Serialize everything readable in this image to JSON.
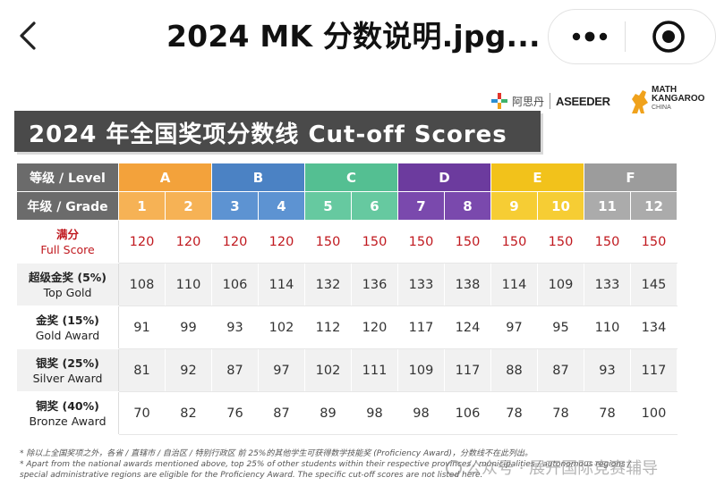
{
  "header": {
    "title": "2024 MK 分数说明.jpg...",
    "icons": {
      "back": "chevron-left-icon",
      "more": "more-dots-icon",
      "target": "target-icon"
    }
  },
  "logos": {
    "aseeder_cn": "阿思丹",
    "aseeder_en": "ASEEDER",
    "mk_line1": "MATH",
    "mk_line2": "KANGAROO",
    "mk_line3": "CHINA"
  },
  "banner": {
    "title": "2024 年全国奖项分数线 Cut-off Scores"
  },
  "table": {
    "level_header": "等级 / Level",
    "grade_header": "年级 / Grade",
    "levels": [
      "A",
      "B",
      "C",
      "D",
      "E",
      "F"
    ],
    "grades": [
      "1",
      "2",
      "3",
      "4",
      "5",
      "6",
      "7",
      "8",
      "9",
      "10",
      "11",
      "12"
    ],
    "rows": [
      {
        "cn": "满分",
        "en": "Full Score",
        "values": [
          "120",
          "120",
          "120",
          "120",
          "150",
          "150",
          "150",
          "150",
          "150",
          "150",
          "150",
          "150"
        ]
      },
      {
        "cn": "超级金奖 (5%)",
        "en": "Top Gold",
        "values": [
          "108",
          "110",
          "106",
          "114",
          "132",
          "136",
          "133",
          "138",
          "114",
          "109",
          "133",
          "145"
        ]
      },
      {
        "cn": "金奖 (15%)",
        "en": "Gold Award",
        "values": [
          "91",
          "99",
          "93",
          "102",
          "112",
          "120",
          "117",
          "124",
          "97",
          "95",
          "110",
          "134"
        ]
      },
      {
        "cn": "银奖 (25%)",
        "en": "Silver Award",
        "values": [
          "81",
          "92",
          "87",
          "97",
          "102",
          "111",
          "109",
          "117",
          "88",
          "87",
          "93",
          "117"
        ]
      },
      {
        "cn": "铜奖 (40%)",
        "en": "Bronze Award",
        "values": [
          "70",
          "82",
          "76",
          "87",
          "89",
          "98",
          "98",
          "106",
          "78",
          "78",
          "78",
          "100"
        ]
      }
    ]
  },
  "notes": {
    "cn": "* 除以上全国奖项之外，各省 / 直辖市 / 自治区 / 特别行政区 前 25%的其他学生可获得数学技能奖 (Proficiency Award)，分数线不在此列出。",
    "en1": "* Apart from the national awards mentioned above, top 25% of other students within their respective provinces / municipalities / autonomous regions /",
    "en2": "special administrative regions are eligible for the Proficiency Award. The specific cut-off scores are not listed here."
  },
  "watermark": "公众号 · 展开国际竞赛辅导",
  "colors": {
    "A": "#f3a23b",
    "B": "#4b82c4",
    "C": "#54bf92",
    "D": "#6c3b9e",
    "E": "#f2c21b",
    "F": "#9c9c9c",
    "full_score": "#c0191f",
    "banner": "#4a4a4a"
  }
}
